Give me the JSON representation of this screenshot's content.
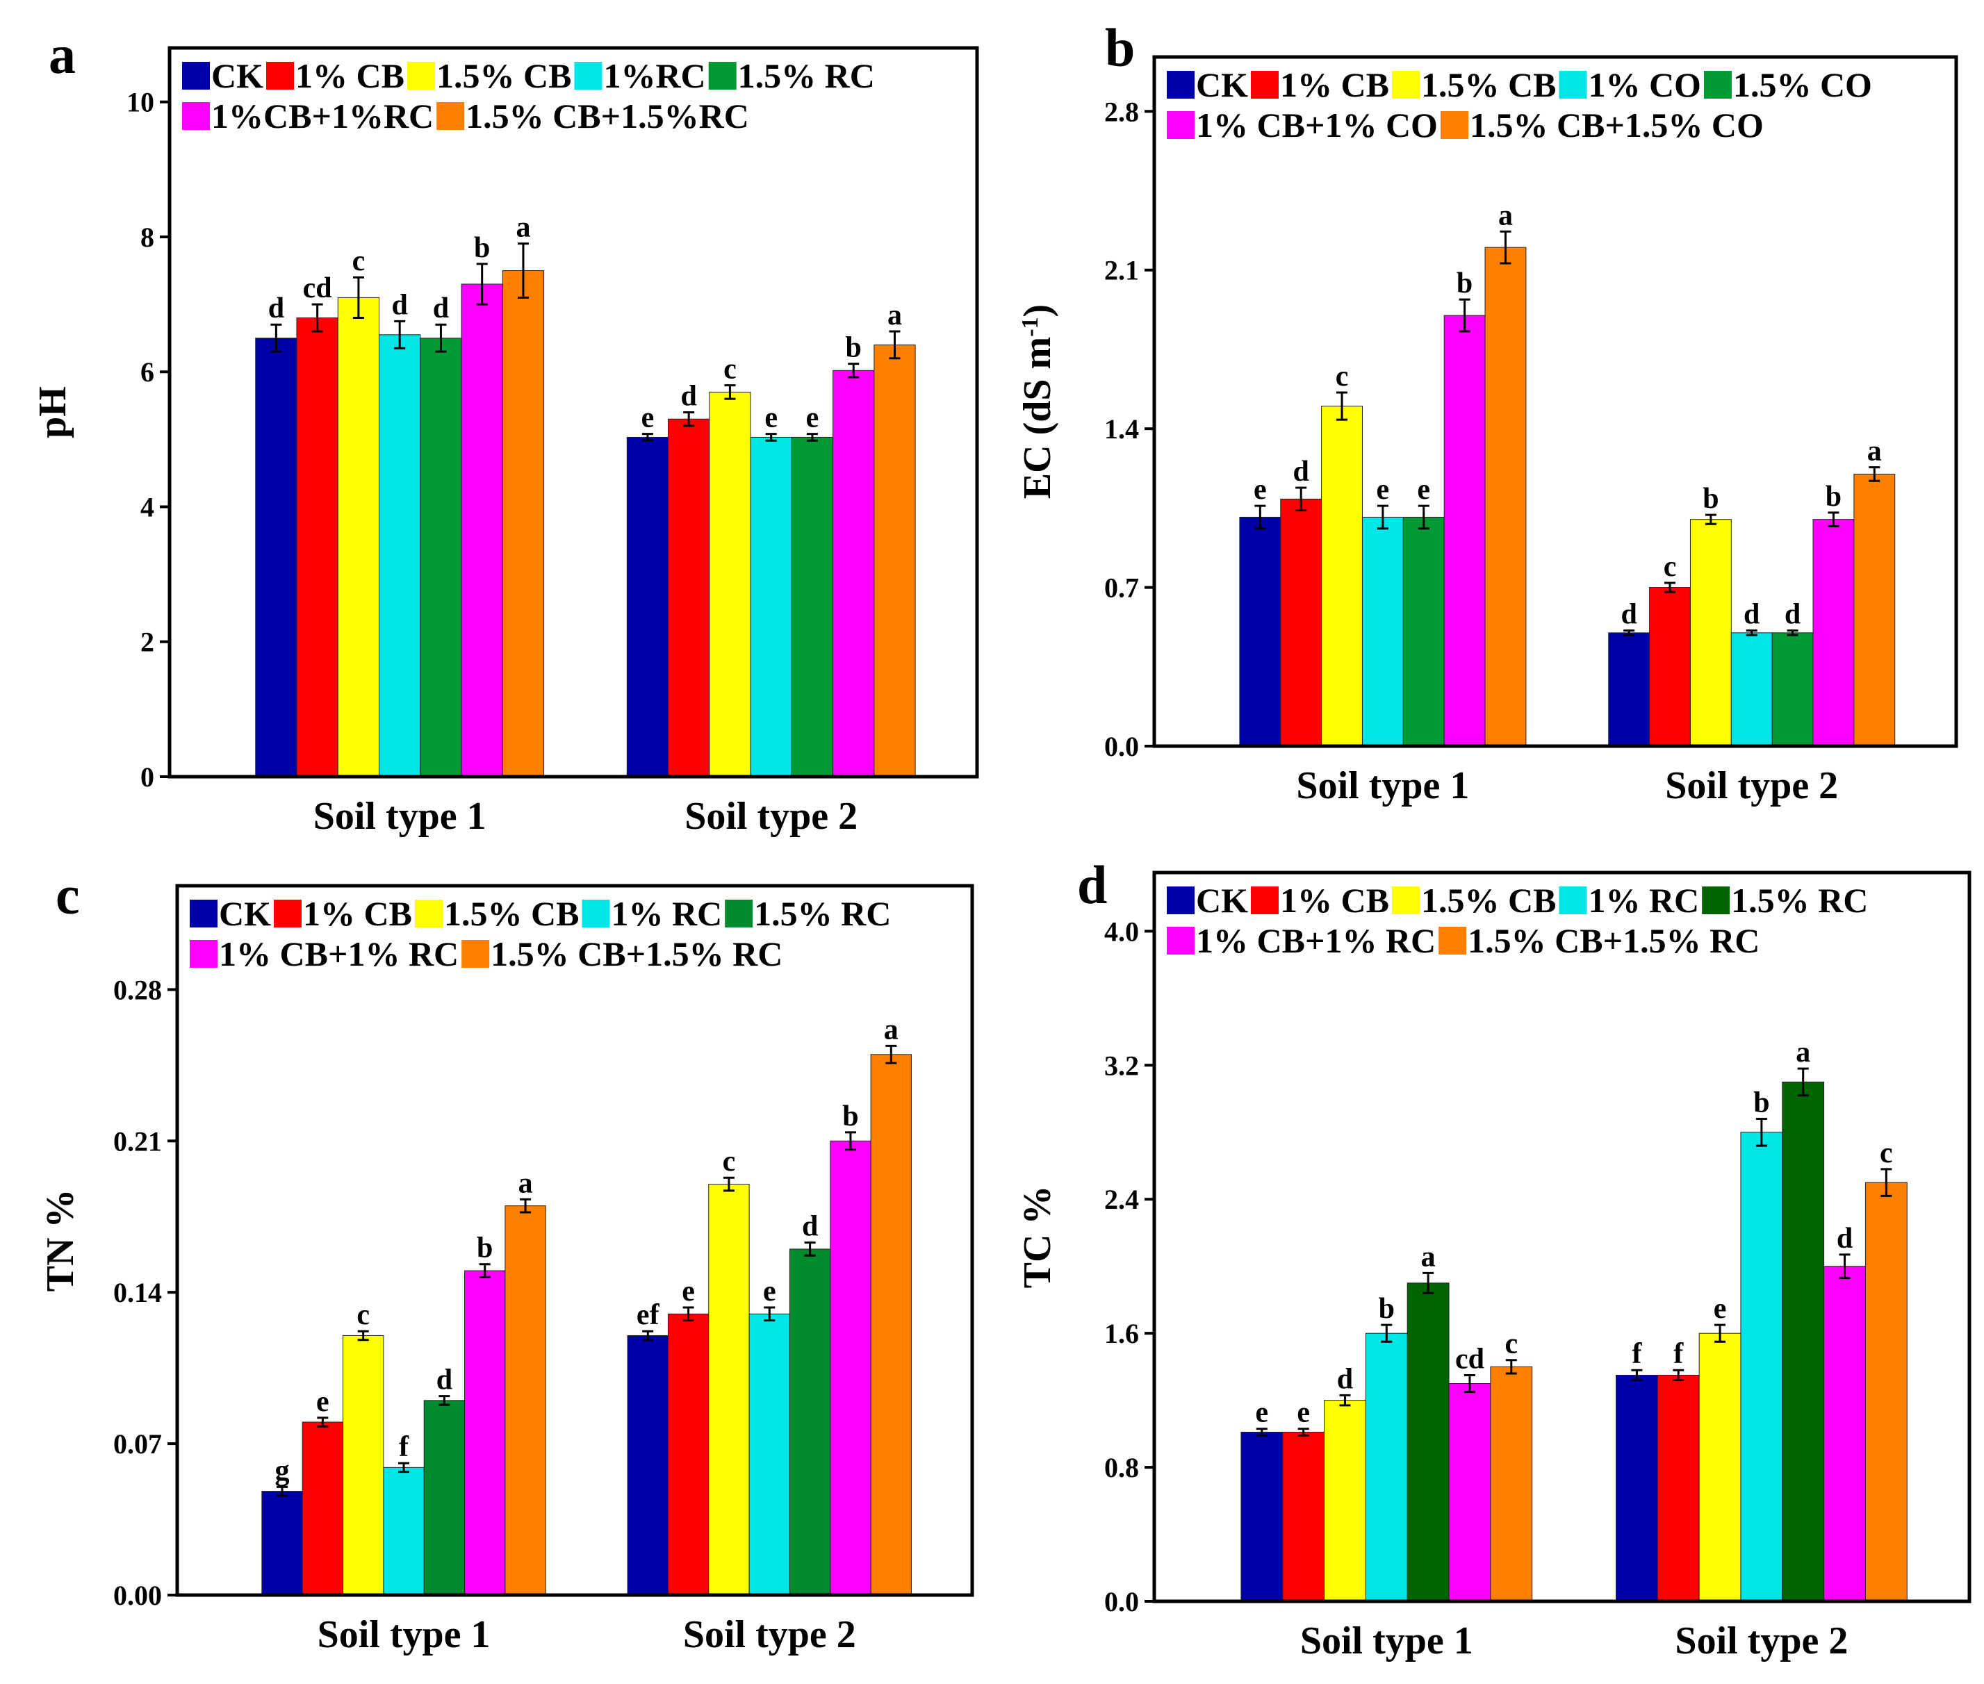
{
  "chart_data": [
    {
      "panel": "a",
      "type": "bar",
      "ylabel": "pH",
      "ylabel_sup": "",
      "ylabel_tail": "",
      "ylim": [
        0,
        10.8
      ],
      "yticks": [
        0,
        2,
        4,
        6,
        8,
        10
      ],
      "tick_decimals": 0,
      "categories": [
        "Soil type 1",
        "Soil type 2"
      ],
      "legend": [
        "CK",
        "1% CB",
        "1.5% CB",
        "1%RC",
        "1.5% RC",
        "1%CB+1%RC",
        "1.5% CB+1.5%RC"
      ],
      "legend_rows": [
        5,
        2
      ],
      "colors": [
        "#0000a8",
        "#ff0000",
        "#ffff00",
        "#00e6e6",
        "#009933",
        "#ff00ff",
        "#ff8000"
      ],
      "series_values": [
        [
          6.5,
          5.03
        ],
        [
          6.8,
          5.3
        ],
        [
          7.1,
          5.7
        ],
        [
          6.55,
          5.03
        ],
        [
          6.5,
          5.03
        ],
        [
          7.3,
          6.02
        ],
        [
          7.5,
          6.4
        ]
      ],
      "errors": [
        [
          0.2,
          0.05
        ],
        [
          0.2,
          0.1
        ],
        [
          0.3,
          0.1
        ],
        [
          0.2,
          0.05
        ],
        [
          0.2,
          0.05
        ],
        [
          0.3,
          0.1
        ],
        [
          0.4,
          0.2
        ]
      ],
      "letters": [
        [
          "d",
          "e"
        ],
        [
          "cd",
          "d"
        ],
        [
          "c",
          "c"
        ],
        [
          "d",
          "e"
        ],
        [
          "d",
          "e"
        ],
        [
          "b",
          "b"
        ],
        [
          "a",
          "a"
        ]
      ]
    },
    {
      "panel": "b",
      "type": "bar",
      "ylabel": "EC (dS m",
      "ylabel_sup": "-1",
      "ylabel_tail": ")",
      "ylim": [
        0,
        3.04
      ],
      "yticks": [
        0,
        0.7,
        1.4,
        2.1,
        2.8
      ],
      "tick_decimals": 1,
      "categories": [
        "Soil type 1",
        "Soil type 2"
      ],
      "legend": [
        "CK",
        "1% CB",
        "1.5% CB",
        "1% CO",
        "1.5% CO",
        "1% CB+1% CO",
        "1.5% CB+1.5% CO"
      ],
      "legend_rows": [
        5,
        2
      ],
      "colors": [
        "#0000a8",
        "#ff0000",
        "#ffff00",
        "#00e6e6",
        "#009933",
        "#ff00ff",
        "#ff8000"
      ],
      "series_values": [
        [
          1.01,
          0.5
        ],
        [
          1.09,
          0.7
        ],
        [
          1.5,
          1.0
        ],
        [
          1.01,
          0.5
        ],
        [
          1.01,
          0.5
        ],
        [
          1.9,
          1.0
        ],
        [
          2.2,
          1.2
        ]
      ],
      "errors": [
        [
          0.05,
          0.01
        ],
        [
          0.05,
          0.02
        ],
        [
          0.06,
          0.02
        ],
        [
          0.05,
          0.01
        ],
        [
          0.05,
          0.01
        ],
        [
          0.07,
          0.03
        ],
        [
          0.07,
          0.03
        ]
      ],
      "letters": [
        [
          "e",
          "d"
        ],
        [
          "d",
          "c"
        ],
        [
          "c",
          "b"
        ],
        [
          "e",
          "d"
        ],
        [
          "e",
          "d"
        ],
        [
          "b",
          "b"
        ],
        [
          "a",
          "a"
        ]
      ]
    },
    {
      "panel": "c",
      "type": "bar",
      "ylabel": "TN %",
      "ylabel_sup": "",
      "ylabel_tail": "",
      "ylim": [
        0,
        0.328
      ],
      "yticks": [
        0,
        0.07,
        0.14,
        0.21,
        0.28
      ],
      "tick_decimals": 2,
      "categories": [
        "Soil type 1",
        "Soil type 2"
      ],
      "legend": [
        "CK",
        "1% CB",
        "1.5% CB",
        "1% RC",
        "1.5% RC",
        "1% CB+1% RC",
        "1.5% CB+1.5% RC"
      ],
      "legend_rows": [
        5,
        2
      ],
      "colors": [
        "#0000a8",
        "#ff0000",
        "#ffff00",
        "#00e6e6",
        "#008a2e",
        "#ff00ff",
        "#ff8000"
      ],
      "series_values": [
        [
          0.048,
          0.12
        ],
        [
          0.08,
          0.13
        ],
        [
          0.12,
          0.19
        ],
        [
          0.059,
          0.13
        ],
        [
          0.09,
          0.16
        ],
        [
          0.15,
          0.21
        ],
        [
          0.18,
          0.25
        ]
      ],
      "errors": [
        [
          0.002,
          0.002
        ],
        [
          0.002,
          0.003
        ],
        [
          0.002,
          0.003
        ],
        [
          0.002,
          0.003
        ],
        [
          0.002,
          0.003
        ],
        [
          0.003,
          0.004
        ],
        [
          0.003,
          0.004
        ]
      ],
      "letters": [
        [
          "g",
          "ef"
        ],
        [
          "e",
          "e"
        ],
        [
          "c",
          "c"
        ],
        [
          "f",
          "e"
        ],
        [
          "d",
          "d"
        ],
        [
          "b",
          "b"
        ],
        [
          "a",
          "a"
        ]
      ]
    },
    {
      "panel": "d",
      "type": "bar",
      "ylabel": "TC %",
      "ylabel_sup": "",
      "ylabel_tail": "",
      "ylim": [
        0,
        4.35
      ],
      "yticks": [
        0,
        0.8,
        1.6,
        2.4,
        3.2,
        4.0
      ],
      "tick_decimals": 1,
      "categories": [
        "Soil type 1",
        "Soil type 2"
      ],
      "legend": [
        "CK",
        "1% CB",
        "1.5% CB",
        "1% RC",
        "1.5% RC",
        "1% CB+1% RC",
        "1.5% CB+1.5% RC"
      ],
      "legend_rows": [
        5,
        2
      ],
      "colors": [
        "#0000a8",
        "#ff0000",
        "#ffff00",
        "#00e6e6",
        "#006400",
        "#ff00ff",
        "#ff8000"
      ],
      "series_values": [
        [
          1.01,
          1.35
        ],
        [
          1.01,
          1.35
        ],
        [
          1.2,
          1.6
        ],
        [
          1.6,
          2.8
        ],
        [
          1.9,
          3.1
        ],
        [
          1.3,
          2.0
        ],
        [
          1.4,
          2.5
        ]
      ],
      "errors": [
        [
          0.02,
          0.03
        ],
        [
          0.02,
          0.03
        ],
        [
          0.03,
          0.05
        ],
        [
          0.05,
          0.08
        ],
        [
          0.06,
          0.08
        ],
        [
          0.05,
          0.07
        ],
        [
          0.04,
          0.08
        ]
      ],
      "letters": [
        [
          "e",
          "f"
        ],
        [
          "e",
          "f"
        ],
        [
          "d",
          "e"
        ],
        [
          "b",
          "b"
        ],
        [
          "a",
          "a"
        ],
        [
          "cd",
          "d"
        ],
        [
          "c",
          "c"
        ]
      ]
    }
  ]
}
